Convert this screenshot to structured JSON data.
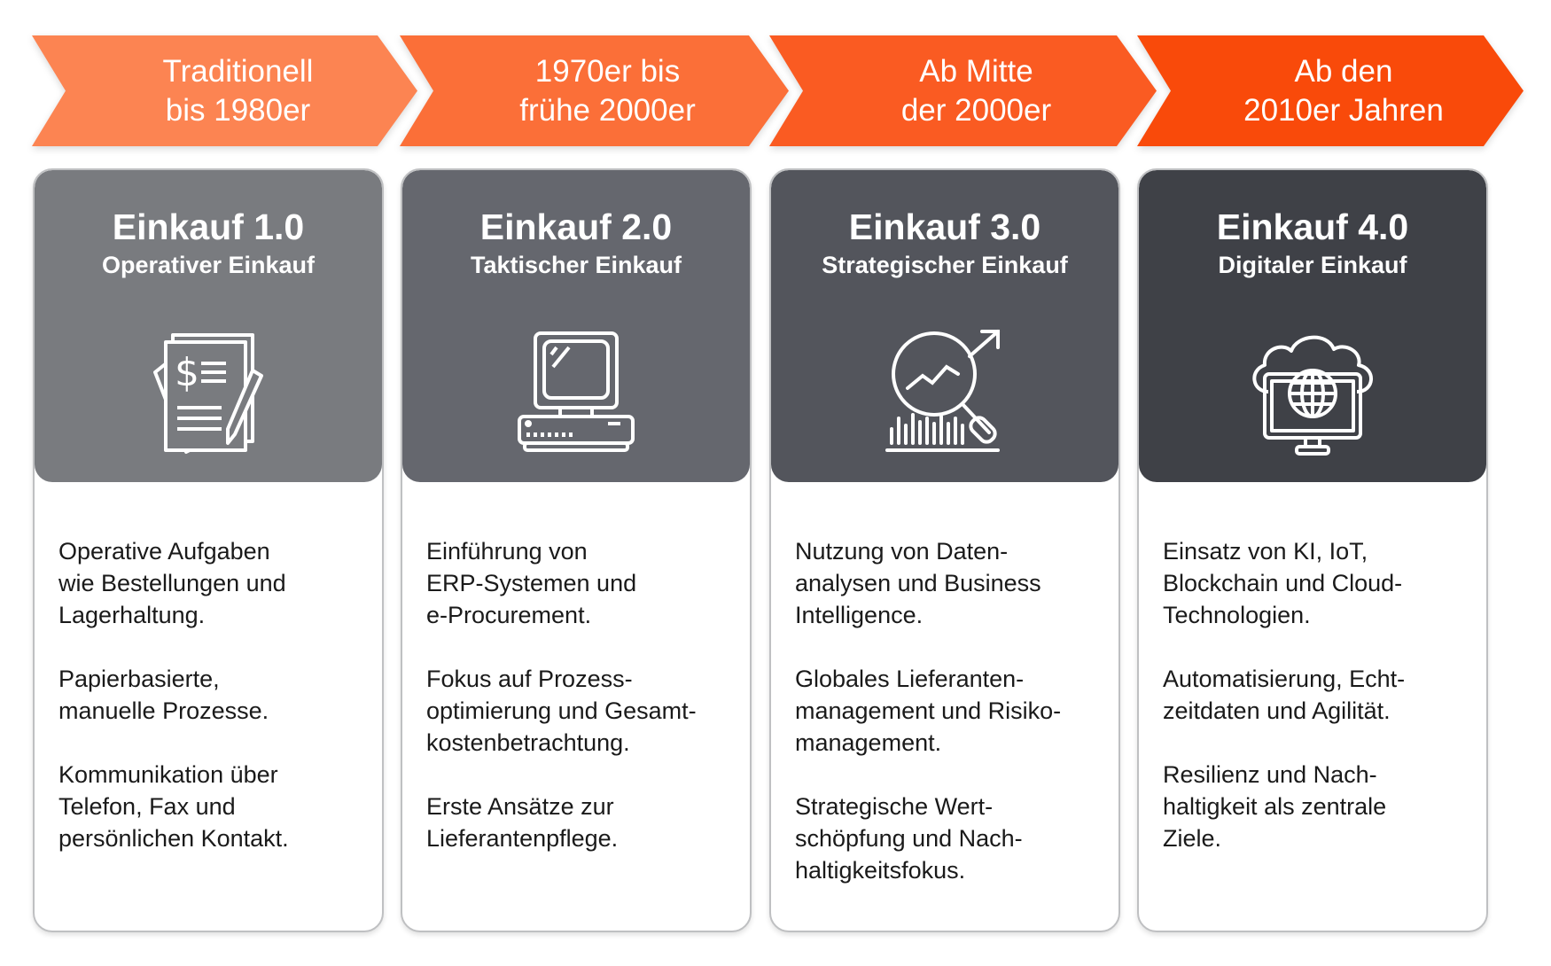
{
  "timeline": [
    {
      "label": "Traditionell\nbis 1980er",
      "color": "#FC8452"
    },
    {
      "label": "1970er bis\nfrühe 2000er",
      "color": "#FB6F38"
    },
    {
      "label": "Ab Mitte\nder 2000er",
      "color": "#FA5B22"
    },
    {
      "label": "Ab den\n2010er Jahren",
      "color": "#F94A0A"
    }
  ],
  "cards": [
    {
      "title": "Einkauf 1.0",
      "subtitle": "Operativer Einkauf",
      "icon": "invoice-document-icon",
      "header_color": "#797B7F",
      "paragraphs": [
        "Operative Aufgaben\nwie Bestellungen und\nLagerhaltung.",
        "Papierbasierte,\nmanuelle Prozesse.",
        "Kommunikation über\nTelefon, Fax und\npersönlichen Kontakt."
      ]
    },
    {
      "title": "Einkauf 2.0",
      "subtitle": "Taktischer Einkauf",
      "icon": "computer-icon",
      "header_color": "#65676E",
      "paragraphs": [
        "Einführung von\nERP-Systemen und\ne-Procurement.",
        "Fokus auf Prozess-\noptimierung und Gesamt-\nkostenbetrachtung.",
        "Erste Ansätze zur\nLieferantenpflege."
      ]
    },
    {
      "title": "Einkauf 3.0",
      "subtitle": "Strategischer Einkauf",
      "icon": "analytics-magnifier-icon",
      "header_color": "#53555C",
      "paragraphs": [
        "Nutzung von Daten-\nanalysen und Business\nIntelligence.",
        "Globales Lieferanten-\nmanagement und Risiko-\nmanagement.",
        "Strategische Wert-\nschöpfung und Nach-\nhaltigkeitsfokus."
      ]
    },
    {
      "title": "Einkauf 4.0",
      "subtitle": "Digitaler Einkauf",
      "icon": "cloud-globe-monitor-icon",
      "header_color": "#3F4147",
      "paragraphs": [
        "Einsatz von KI, IoT,\nBlockchain und Cloud-\nTechnologien.",
        "Automatisierung, Echt-\nzeitdaten und Agilität.",
        "Resilienz und Nach-\nhaltigkeit als zentrale\nZiele."
      ]
    }
  ]
}
